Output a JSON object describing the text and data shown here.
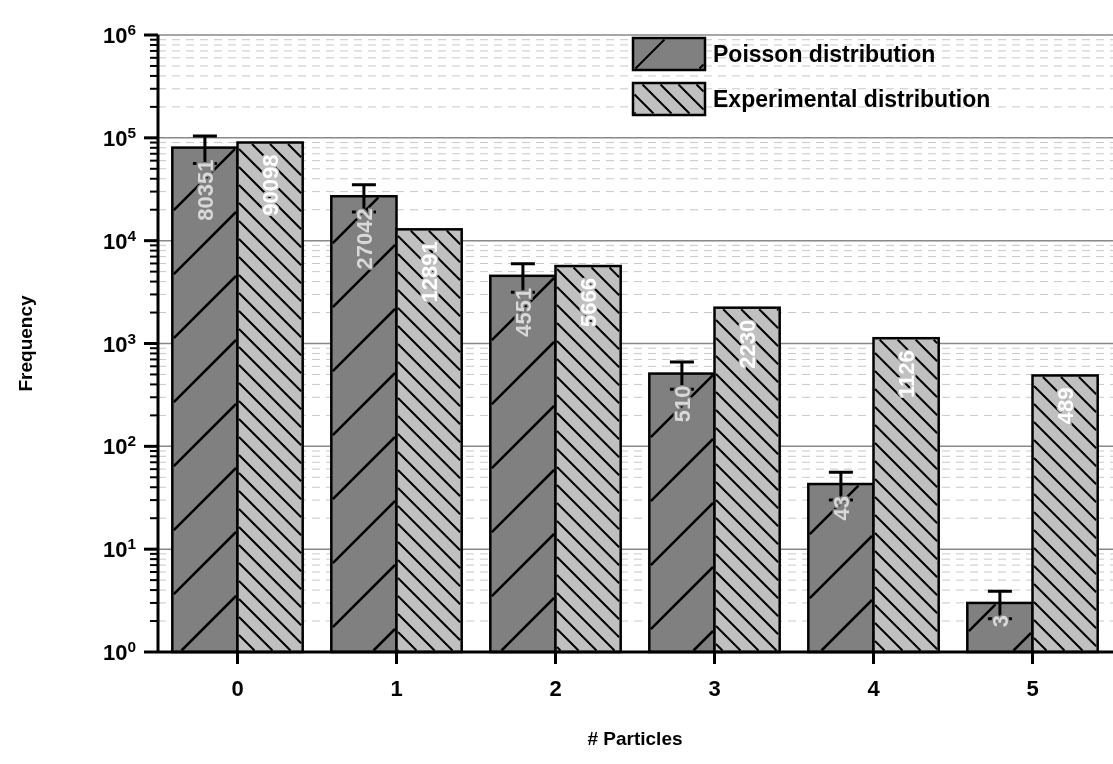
{
  "chart_data": {
    "type": "bar",
    "xlabel": "# Particles",
    "ylabel": "Frequency",
    "categories": [
      "0",
      "1",
      "2",
      "3",
      "4",
      "5"
    ],
    "series": [
      {
        "name": "Poisson distribution",
        "color": "#808080",
        "values": [
          80351,
          27042,
          4551,
          510,
          43,
          3
        ],
        "errors": [
          24000,
          8000,
          1400,
          150,
          13,
          0.9
        ]
      },
      {
        "name": "Experimental distribution",
        "color": "#c0c0c0",
        "values": [
          90098,
          12891,
          5666,
          2230,
          1126,
          489
        ]
      }
    ],
    "log": true,
    "ylim": [
      1,
      1000000
    ],
    "yticks": [
      {
        "value": 1,
        "label": "10$^{0}$"
      },
      {
        "value": 10,
        "label": "10$^{1}$"
      },
      {
        "value": 100,
        "label": "10$^{2}$"
      },
      {
        "value": 1000,
        "label": "10$^{3}$"
      },
      {
        "value": 10000,
        "label": "10$^{4}$"
      },
      {
        "value": 100000,
        "label": "10$^{5}$"
      },
      {
        "value": 1000000,
        "label": "10$^{6}$"
      }
    ],
    "grid": "y",
    "legend": "top right",
    "data_labels": true
  }
}
